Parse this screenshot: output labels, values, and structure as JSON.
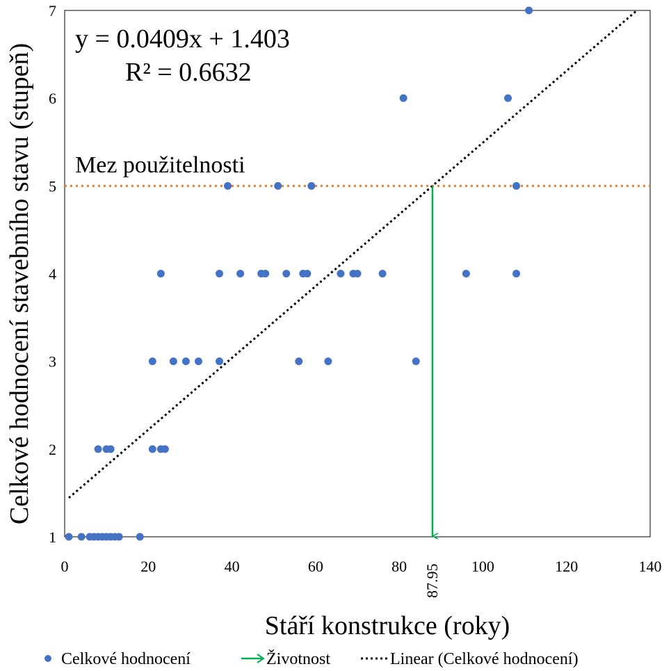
{
  "chart_data": {
    "type": "scatter",
    "xlabel": "Stáří konstrukce (roky)",
    "ylabel": "Celkové hodnocení  stavebního stavu (stupeň)",
    "xlim": [
      0,
      140
    ],
    "ylim": [
      1,
      7
    ],
    "xticks": [
      0,
      20,
      40,
      60,
      80,
      100,
      120,
      140
    ],
    "yticks": [
      1,
      2,
      3,
      4,
      5,
      6,
      7
    ],
    "grid": false,
    "legend_position": "bottom",
    "series": [
      {
        "name": "Celkové hodnocení",
        "kind": "scatter",
        "color": "#4472C4",
        "points": [
          [
            1,
            1
          ],
          [
            4,
            1
          ],
          [
            6,
            1
          ],
          [
            7,
            1
          ],
          [
            8,
            1
          ],
          [
            9,
            1
          ],
          [
            10,
            1
          ],
          [
            11,
            1
          ],
          [
            12,
            1
          ],
          [
            13,
            1
          ],
          [
            18,
            1
          ],
          [
            8,
            2
          ],
          [
            10,
            2
          ],
          [
            11,
            2
          ],
          [
            21,
            2
          ],
          [
            23,
            2
          ],
          [
            24,
            2
          ],
          [
            21,
            3
          ],
          [
            26,
            3
          ],
          [
            29,
            3
          ],
          [
            32,
            3
          ],
          [
            37,
            3
          ],
          [
            56,
            3
          ],
          [
            63,
            3
          ],
          [
            84,
            3
          ],
          [
            23,
            4
          ],
          [
            37,
            4
          ],
          [
            42,
            4
          ],
          [
            47,
            4
          ],
          [
            48,
            4
          ],
          [
            53,
            4
          ],
          [
            57,
            4
          ],
          [
            58,
            4
          ],
          [
            66,
            4
          ],
          [
            69,
            4
          ],
          [
            70,
            4
          ],
          [
            76,
            4
          ],
          [
            96,
            4
          ],
          [
            108,
            4
          ],
          [
            39,
            5
          ],
          [
            51,
            5
          ],
          [
            59,
            5
          ],
          [
            108,
            5
          ],
          [
            81,
            6
          ],
          [
            106,
            6
          ],
          [
            111,
            7
          ]
        ]
      },
      {
        "name": "Životnost",
        "kind": "arrow",
        "color": "#00B050",
        "x": 87.95,
        "from_y": 5,
        "to_y": 1
      },
      {
        "name": "Linear (Celkové hodnocení)",
        "kind": "trendline",
        "color": "#000000",
        "slope": 0.0409,
        "intercept": 1.403,
        "x_range": [
          1,
          137
        ]
      }
    ],
    "threshold": {
      "label": "Mez použitelnosti",
      "y": 5,
      "color": "#ED7D31"
    },
    "equation_line1": "y = 0.0409x + 1.403",
    "equation_line2": "R² = 0.6632",
    "marked_x_label": "87.95"
  },
  "legend": {
    "items": [
      {
        "label": "Celkové hodnocení",
        "icon": "dot-icon"
      },
      {
        "label": "Životnost",
        "icon": "arrow-icon"
      },
      {
        "label": "Linear (Celkové hodnocení)",
        "icon": "dotted-line-icon"
      }
    ]
  }
}
